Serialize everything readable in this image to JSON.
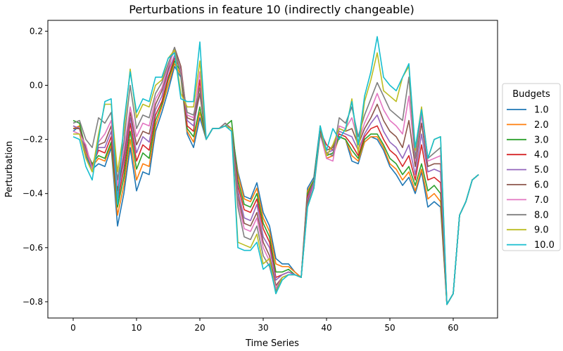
{
  "chart_data": {
    "type": "line",
    "title": "Perturbations in feature 10 (indirectly changeable)",
    "xlabel": "Time Series",
    "ylabel": "Perturbation",
    "xlim": [
      -4,
      67
    ],
    "ylim": [
      -0.86,
      0.24
    ],
    "xticks": [
      0,
      10,
      20,
      30,
      40,
      50,
      60
    ],
    "yticks": [
      -0.8,
      -0.6,
      -0.4,
      -0.2,
      0.0,
      0.2
    ],
    "ytick_labels": [
      "−0.8",
      "−0.6",
      "−0.4",
      "−0.2",
      "0.0",
      "0.2"
    ],
    "grid": false,
    "legend": {
      "title": "Budgets",
      "placement": "right"
    },
    "x": [
      0,
      1,
      2,
      3,
      4,
      5,
      6,
      7,
      8,
      9,
      10,
      11,
      12,
      13,
      14,
      15,
      16,
      17,
      18,
      19,
      20,
      21,
      22,
      23,
      24,
      25,
      26,
      27,
      28,
      29,
      30,
      31,
      32,
      33,
      34,
      35,
      36,
      37,
      38,
      39,
      40,
      41,
      42,
      43,
      44,
      45,
      46,
      47,
      48,
      49,
      50,
      51,
      52,
      53,
      54,
      55,
      56,
      57,
      58,
      59,
      60,
      61,
      62,
      63,
      64
    ],
    "series": [
      {
        "name": "1.0",
        "color": "#1f77b4",
        "values": [
          -0.17,
          -0.15,
          -0.26,
          -0.31,
          -0.29,
          -0.3,
          -0.23,
          -0.52,
          -0.4,
          -0.23,
          -0.39,
          -0.32,
          -0.33,
          -0.17,
          -0.1,
          -0.02,
          0.07,
          0.03,
          -0.18,
          -0.23,
          -0.12,
          -0.2,
          -0.16,
          -0.16,
          -0.15,
          -0.16,
          -0.32,
          -0.41,
          -0.42,
          -0.36,
          -0.47,
          -0.52,
          -0.64,
          -0.66,
          -0.66,
          -0.69,
          -0.71,
          -0.38,
          -0.34,
          -0.15,
          -0.27,
          -0.26,
          -0.19,
          -0.2,
          -0.28,
          -0.29,
          -0.21,
          -0.19,
          -0.2,
          -0.24,
          -0.3,
          -0.33,
          -0.37,
          -0.34,
          -0.4,
          -0.32,
          -0.45,
          -0.43,
          -0.45,
          -0.81,
          -0.77,
          -0.48,
          -0.43,
          -0.35,
          -0.33
        ]
      },
      {
        "name": "2.0",
        "color": "#ff7f0e",
        "values": [
          -0.16,
          -0.15,
          -0.25,
          -0.3,
          -0.27,
          -0.28,
          -0.22,
          -0.48,
          -0.37,
          -0.2,
          -0.35,
          -0.29,
          -0.3,
          -0.15,
          -0.08,
          0.0,
          0.08,
          0.04,
          -0.17,
          -0.21,
          -0.1,
          -0.2,
          -0.16,
          -0.16,
          -0.15,
          -0.16,
          -0.33,
          -0.42,
          -0.43,
          -0.38,
          -0.49,
          -0.54,
          -0.66,
          -0.67,
          -0.67,
          -0.69,
          -0.71,
          -0.39,
          -0.35,
          -0.16,
          -0.27,
          -0.26,
          -0.19,
          -0.2,
          -0.26,
          -0.28,
          -0.21,
          -0.19,
          -0.19,
          -0.23,
          -0.29,
          -0.31,
          -0.35,
          -0.32,
          -0.39,
          -0.31,
          -0.42,
          -0.4,
          -0.43,
          -0.81,
          -0.77,
          -0.48,
          -0.43,
          -0.35,
          -0.33
        ]
      },
      {
        "name": "3.0",
        "color": "#2ca02c",
        "values": [
          -0.13,
          -0.14,
          -0.24,
          -0.29,
          -0.26,
          -0.27,
          -0.21,
          -0.45,
          -0.34,
          -0.17,
          -0.31,
          -0.25,
          -0.27,
          -0.13,
          -0.07,
          0.02,
          0.09,
          0.05,
          -0.16,
          -0.19,
          -0.08,
          -0.2,
          -0.16,
          -0.16,
          -0.15,
          -0.13,
          -0.35,
          -0.44,
          -0.45,
          -0.4,
          -0.51,
          -0.56,
          -0.69,
          -0.69,
          -0.68,
          -0.7,
          -0.71,
          -0.4,
          -0.35,
          -0.16,
          -0.26,
          -0.25,
          -0.19,
          -0.2,
          -0.24,
          -0.27,
          -0.2,
          -0.18,
          -0.18,
          -0.22,
          -0.27,
          -0.29,
          -0.33,
          -0.3,
          -0.37,
          -0.29,
          -0.39,
          -0.37,
          -0.4,
          -0.81,
          -0.77,
          -0.48,
          -0.43,
          -0.35,
          -0.33
        ]
      },
      {
        "name": "4.0",
        "color": "#d62728",
        "values": [
          -0.15,
          -0.16,
          -0.24,
          -0.3,
          -0.24,
          -0.25,
          -0.19,
          -0.43,
          -0.31,
          -0.14,
          -0.28,
          -0.22,
          -0.24,
          -0.11,
          -0.06,
          0.03,
          0.1,
          0.06,
          -0.15,
          -0.17,
          0.02,
          -0.2,
          -0.16,
          -0.16,
          -0.15,
          -0.16,
          -0.37,
          -0.46,
          -0.47,
          -0.42,
          -0.53,
          -0.58,
          -0.71,
          -0.7,
          -0.69,
          -0.7,
          -0.71,
          -0.41,
          -0.36,
          -0.17,
          -0.22,
          -0.24,
          -0.18,
          -0.19,
          -0.22,
          -0.26,
          -0.19,
          -0.16,
          -0.15,
          -0.2,
          -0.24,
          -0.26,
          -0.3,
          -0.26,
          -0.35,
          -0.22,
          -0.35,
          -0.34,
          -0.36,
          -0.81,
          -0.77,
          -0.48,
          -0.43,
          -0.35,
          -0.33
        ]
      },
      {
        "name": "5.0",
        "color": "#9467bd",
        "values": [
          -0.15,
          -0.16,
          -0.24,
          -0.3,
          -0.23,
          -0.23,
          -0.17,
          -0.41,
          -0.28,
          -0.12,
          -0.25,
          -0.19,
          -0.21,
          -0.09,
          -0.04,
          0.05,
          0.11,
          0.06,
          -0.13,
          -0.15,
          -0.03,
          -0.2,
          -0.16,
          -0.16,
          -0.15,
          -0.16,
          -0.39,
          -0.49,
          -0.5,
          -0.44,
          -0.56,
          -0.6,
          -0.72,
          -0.7,
          -0.69,
          -0.7,
          -0.71,
          -0.42,
          -0.36,
          -0.17,
          -0.25,
          -0.24,
          -0.17,
          -0.18,
          -0.19,
          -0.24,
          -0.18,
          -0.14,
          -0.11,
          -0.17,
          -0.21,
          -0.23,
          -0.27,
          -0.22,
          -0.33,
          -0.18,
          -0.32,
          -0.31,
          -0.32,
          -0.81,
          -0.77,
          -0.48,
          -0.43,
          -0.35,
          -0.33
        ]
      },
      {
        "name": "6.0",
        "color": "#8c564b",
        "values": [
          -0.16,
          -0.16,
          -0.23,
          -0.3,
          -0.22,
          -0.21,
          -0.15,
          -0.39,
          -0.26,
          -0.1,
          -0.22,
          -0.17,
          -0.18,
          -0.07,
          -0.02,
          0.06,
          0.14,
          0.07,
          -0.12,
          -0.13,
          -0.03,
          -0.2,
          -0.16,
          -0.16,
          -0.14,
          -0.16,
          -0.41,
          -0.51,
          -0.52,
          -0.47,
          -0.58,
          -0.63,
          -0.74,
          -0.71,
          -0.7,
          -0.7,
          -0.71,
          -0.43,
          -0.37,
          -0.17,
          -0.24,
          -0.23,
          -0.16,
          -0.17,
          -0.16,
          -0.22,
          -0.16,
          -0.12,
          -0.07,
          -0.13,
          -0.17,
          -0.19,
          -0.23,
          -0.13,
          -0.3,
          -0.14,
          -0.3,
          -0.29,
          -0.29,
          -0.81,
          -0.77,
          -0.48,
          -0.43,
          -0.35,
          -0.33
        ]
      },
      {
        "name": "7.0",
        "color": "#e377c2",
        "values": [
          -0.17,
          -0.18,
          -0.22,
          -0.31,
          -0.21,
          -0.18,
          -0.13,
          -0.37,
          -0.24,
          -0.08,
          -0.19,
          -0.14,
          -0.15,
          -0.05,
          -0.01,
          0.07,
          0.13,
          0.05,
          -0.11,
          -0.12,
          0.05,
          -0.2,
          -0.16,
          -0.16,
          -0.14,
          -0.16,
          -0.43,
          -0.53,
          -0.54,
          -0.49,
          -0.6,
          -0.65,
          -0.75,
          -0.71,
          -0.7,
          -0.7,
          -0.71,
          -0.44,
          -0.37,
          -0.18,
          -0.27,
          -0.28,
          -0.15,
          -0.16,
          -0.12,
          -0.21,
          -0.14,
          -0.09,
          -0.03,
          -0.09,
          -0.13,
          -0.15,
          -0.18,
          -0.04,
          -0.28,
          -0.11,
          -0.28,
          -0.27,
          -0.26,
          -0.81,
          -0.77,
          -0.48,
          -0.43,
          -0.35,
          -0.33
        ]
      },
      {
        "name": "8.0",
        "color": "#7f7f7f",
        "values": [
          -0.14,
          -0.13,
          -0.2,
          -0.23,
          -0.12,
          -0.14,
          -0.1,
          -0.35,
          -0.21,
          0.0,
          -0.16,
          -0.11,
          -0.12,
          -0.03,
          0.01,
          0.08,
          0.14,
          0.04,
          -0.1,
          -0.11,
          -0.01,
          -0.2,
          -0.16,
          -0.16,
          -0.14,
          -0.16,
          -0.45,
          -0.56,
          -0.57,
          -0.52,
          -0.63,
          -0.67,
          -0.76,
          -0.71,
          -0.7,
          -0.7,
          -0.71,
          -0.44,
          -0.38,
          -0.18,
          -0.25,
          -0.26,
          -0.12,
          -0.14,
          -0.08,
          -0.19,
          -0.11,
          -0.05,
          0.01,
          -0.04,
          -0.09,
          -0.11,
          -0.13,
          0.03,
          -0.27,
          -0.09,
          -0.27,
          -0.25,
          -0.23,
          -0.81,
          -0.77,
          -0.48,
          -0.43,
          -0.35,
          -0.33
        ]
      },
      {
        "name": "9.0",
        "color": "#bcbd22",
        "values": [
          -0.18,
          -0.18,
          -0.27,
          -0.32,
          -0.18,
          -0.07,
          -0.07,
          -0.32,
          -0.17,
          0.06,
          -0.12,
          -0.07,
          -0.08,
          0.0,
          0.02,
          0.1,
          0.13,
          -0.03,
          -0.08,
          -0.08,
          0.09,
          -0.2,
          -0.16,
          -0.16,
          -0.15,
          -0.16,
          -0.58,
          -0.59,
          -0.6,
          -0.55,
          -0.66,
          -0.64,
          -0.77,
          -0.71,
          -0.7,
          -0.7,
          -0.71,
          -0.45,
          -0.38,
          -0.15,
          -0.26,
          -0.22,
          -0.16,
          -0.17,
          -0.05,
          -0.25,
          -0.06,
          0.02,
          0.12,
          -0.02,
          -0.04,
          -0.06,
          0.03,
          0.07,
          -0.24,
          -0.08,
          -0.27,
          -0.2,
          -0.19,
          -0.81,
          -0.77,
          -0.48,
          -0.43,
          -0.35,
          -0.33
        ]
      },
      {
        "name": "10.0",
        "color": "#17becf",
        "values": [
          -0.19,
          -0.2,
          -0.3,
          -0.35,
          -0.2,
          -0.06,
          -0.05,
          -0.44,
          -0.14,
          0.05,
          -0.1,
          -0.05,
          -0.06,
          0.03,
          0.03,
          0.1,
          0.12,
          -0.05,
          -0.06,
          -0.06,
          0.16,
          -0.2,
          -0.16,
          -0.16,
          -0.15,
          -0.17,
          -0.6,
          -0.61,
          -0.61,
          -0.58,
          -0.68,
          -0.66,
          -0.77,
          -0.72,
          -0.7,
          -0.7,
          -0.71,
          -0.45,
          -0.38,
          -0.15,
          -0.24,
          -0.16,
          -0.2,
          -0.16,
          -0.06,
          -0.22,
          -0.04,
          0.05,
          0.18,
          0.03,
          0.0,
          -0.02,
          0.03,
          0.08,
          -0.23,
          -0.09,
          -0.27,
          -0.2,
          -0.19,
          -0.81,
          -0.77,
          -0.48,
          -0.43,
          -0.35,
          -0.33
        ]
      }
    ]
  }
}
